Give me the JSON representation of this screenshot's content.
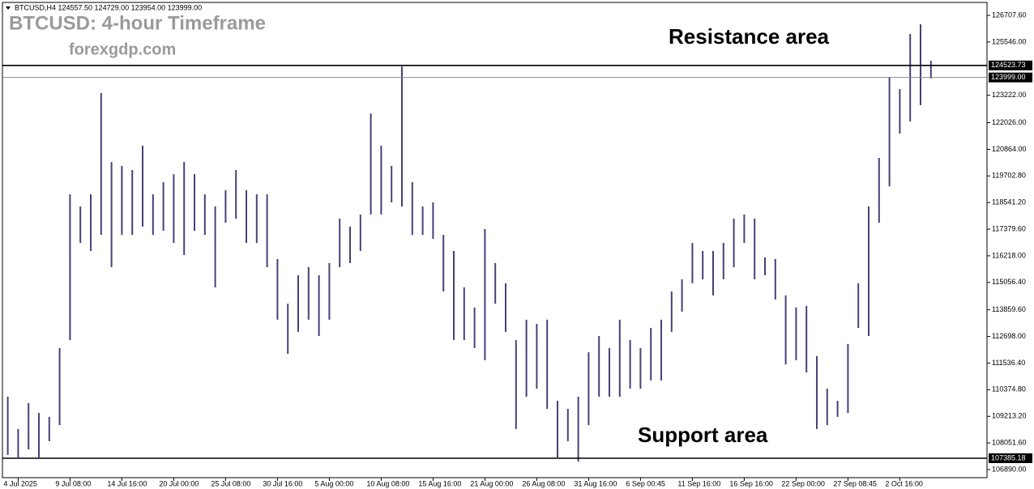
{
  "chart_data": {
    "type": "hilo",
    "title": "BTCUSD: 4-hour Timeframe",
    "subtitle": "forexgdp.com",
    "info": "BTCUSD,H4  124557.50 124729.00 123954.00 123999.00",
    "annotations": [
      "Resistance area",
      "Support area"
    ],
    "color": "#4a3f78",
    "categories": [
      null,
      "4 Jul 2025",
      null,
      null,
      null,
      null,
      "9 Jul 08:00",
      null,
      null,
      null,
      null,
      "14 Jul 16:00",
      null,
      null,
      null,
      null,
      "20 Jul 00:00",
      null,
      null,
      null,
      null,
      "25 Jul 08:00",
      null,
      null,
      null,
      null,
      "30 Jul 16:00",
      null,
      null,
      null,
      null,
      "5 Aug 00:00",
      null,
      null,
      null,
      null,
      "10 Aug 08:00",
      null,
      null,
      null,
      null,
      "15 Aug 16:00",
      null,
      null,
      null,
      null,
      "21 Aug 00:00",
      null,
      null,
      null,
      null,
      "26 Aug 08:00",
      null,
      null,
      null,
      null,
      "31 Aug 16:00",
      null,
      null,
      null,
      null,
      "6 Sep 00:45",
      null,
      null,
      null,
      null,
      "11 Sep 16:00",
      null,
      null,
      null,
      null,
      "16 Sep 16:00",
      null,
      null,
      null,
      null,
      "22 Sep 00:00",
      null,
      null,
      null,
      null,
      "27 Sep 08:45",
      null,
      null,
      null,
      null,
      "2 Oct 16:00",
      null,
      null,
      null
    ],
    "high": [
      110070,
      108660,
      109790,
      109360,
      109190,
      112190,
      118900,
      118370,
      118900,
      123320,
      120310,
      120140,
      119960,
      121020,
      118900,
      119430,
      119780,
      120310,
      119780,
      118900,
      118370,
      119080,
      119960,
      119080,
      118900,
      118900,
      116080,
      114130,
      115370,
      115720,
      115370,
      115900,
      117840,
      117490,
      118020,
      122430,
      121020,
      120140,
      124480,
      119430,
      118370,
      118550,
      117130,
      116430,
      114840,
      113960,
      117380,
      115900,
      115020,
      112540,
      113430,
      113250,
      113430,
      109890,
      109540,
      110070,
      112010,
      112720,
      112190,
      113430,
      112540,
      112190,
      113070,
      113430,
      114660,
      115190,
      116780,
      116430,
      116430,
      116780,
      117840,
      118020,
      117840,
      116150,
      116080,
      114490,
      113960,
      114030,
      111840,
      110420,
      109890,
      112370,
      115020,
      118370,
      120490,
      124020,
      123490,
      125900,
      126320,
      124729
    ],
    "low": [
      107530,
      107420,
      107770,
      107420,
      108130,
      108830,
      112540,
      116780,
      116430,
      117130,
      115720,
      117130,
      117130,
      117490,
      117130,
      117310,
      116780,
      116250,
      117310,
      117130,
      114840,
      117660,
      117840,
      116780,
      116780,
      115720,
      113430,
      111940,
      112900,
      113430,
      112720,
      113430,
      115720,
      115900,
      116430,
      118020,
      118020,
      118550,
      118370,
      117130,
      117130,
      116960,
      114660,
      112540,
      112540,
      112190,
      111660,
      114130,
      112900,
      108660,
      110070,
      110420,
      109540,
      107420,
      108130,
      107240,
      108830,
      110070,
      110070,
      110070,
      110420,
      110420,
      110780,
      110780,
      112900,
      113780,
      115020,
      115190,
      114490,
      115190,
      115720,
      116780,
      115190,
      115370,
      114310,
      111480,
      111660,
      111130,
      108660,
      108830,
      109190,
      109360,
      113070,
      112720,
      117660,
      119250,
      121550,
      122080,
      122790,
      123954
    ],
    "ylim": [
      106537,
      127273
    ],
    "yticks": [
      {
        "value": 126707.6,
        "label": "126707.60"
      },
      {
        "value": 125546,
        "label": "125546.00"
      },
      {
        "value": 123222,
        "label": "123222.00"
      },
      {
        "value": 122026,
        "label": "122026.00"
      },
      {
        "value": 120864,
        "label": "120864.00"
      },
      {
        "value": 119702.8,
        "label": "119702.80"
      },
      {
        "value": 118541.2,
        "label": "118541.20"
      },
      {
        "value": 117379.6,
        "label": "117379.60"
      },
      {
        "value": 116218,
        "label": "116218.00"
      },
      {
        "value": 115056.4,
        "label": "115056.40"
      },
      {
        "value": 113859.6,
        "label": "113859.60"
      },
      {
        "value": 112698,
        "label": "112698.00"
      },
      {
        "value": 111536.4,
        "label": "111536.40"
      },
      {
        "value": 110374.8,
        "label": "110374.80"
      },
      {
        "value": 109213.2,
        "label": "109213.20"
      },
      {
        "value": 108051.6,
        "label": "108051.60"
      },
      {
        "value": 106890,
        "label": "106890.00"
      }
    ],
    "levels": [
      124523.73,
      {
        "value": 123999,
        "label": "123999.00"
      },
      107385.18
    ]
  }
}
